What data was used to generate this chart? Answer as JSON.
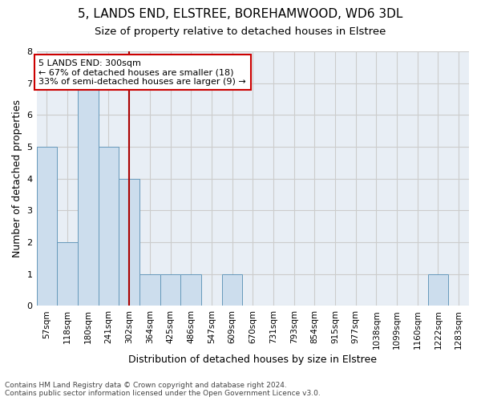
{
  "title_line1": "5, LANDS END, ELSTREE, BOREHAMWOOD, WD6 3DL",
  "title_line2": "Size of property relative to detached houses in Elstree",
  "xlabel": "Distribution of detached houses by size in Elstree",
  "ylabel": "Number of detached properties",
  "categories": [
    "57sqm",
    "118sqm",
    "180sqm",
    "241sqm",
    "302sqm",
    "364sqm",
    "425sqm",
    "486sqm",
    "547sqm",
    "609sqm",
    "670sqm",
    "731sqm",
    "793sqm",
    "854sqm",
    "915sqm",
    "977sqm",
    "1038sqm",
    "1099sqm",
    "1160sqm",
    "1222sqm",
    "1283sqm"
  ],
  "values": [
    5,
    2,
    7,
    5,
    4,
    1,
    1,
    1,
    0,
    1,
    0,
    0,
    0,
    0,
    0,
    0,
    0,
    0,
    0,
    1,
    0
  ],
  "bar_color": "#ccdded",
  "bar_edge_color": "#6699bb",
  "annotation_text": "5 LANDS END: 300sqm\n← 67% of detached houses are smaller (18)\n33% of semi-detached houses are larger (9) →",
  "annotation_box_color": "#ffffff",
  "annotation_box_edge": "#cc0000",
  "vline_color": "#aa0000",
  "vline_x": 4.5,
  "ylim": [
    0,
    8
  ],
  "yticks": [
    0,
    1,
    2,
    3,
    4,
    5,
    6,
    7,
    8
  ],
  "grid_color": "#cccccc",
  "bg_color": "#e8eef5",
  "footnote": "Contains HM Land Registry data © Crown copyright and database right 2024.\nContains public sector information licensed under the Open Government Licence v3.0.",
  "title_fontsize": 11,
  "subtitle_fontsize": 9.5,
  "axis_label_fontsize": 9,
  "tick_fontsize": 7.5,
  "annotation_fontsize": 8
}
